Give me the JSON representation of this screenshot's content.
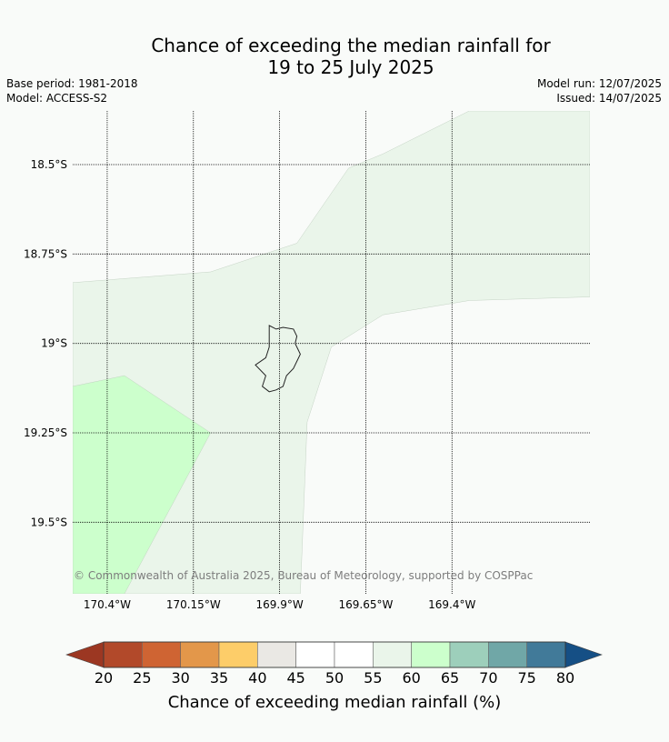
{
  "title_line1": "Chance of exceeding the median rainfall for",
  "title_line2": "19 to 25 July 2025",
  "base_period": "Base period: 1981-2018",
  "model": "Model: ACCESS-S2",
  "model_run": "Model run: 12/07/2025",
  "issued": "Issued: 14/07/2025",
  "copyright": "© Commonwealth of Australia 2025, Bureau of Meteorology, supported by COSPPac",
  "map": {
    "lon_range": [
      -170.5,
      -169.0
    ],
    "lat_range": [
      -19.7,
      -18.35
    ],
    "lat_ticks": [
      {
        "value": -18.5,
        "label": "18.5°S"
      },
      {
        "value": -18.75,
        "label": "18.75°S"
      },
      {
        "value": -19.0,
        "label": "19°S"
      },
      {
        "value": -19.25,
        "label": "19.25°S"
      },
      {
        "value": -19.5,
        "label": "19.5°S"
      }
    ],
    "lon_ticks": [
      {
        "value": -170.4,
        "label": "170.4°W"
      },
      {
        "value": -170.15,
        "label": "170.15°W"
      },
      {
        "value": -169.9,
        "label": "169.9°W"
      },
      {
        "value": -169.65,
        "label": "169.65°W"
      },
      {
        "value": -169.4,
        "label": "169.4°W"
      }
    ],
    "regions": [
      {
        "category": "55-60",
        "color": "#eaf5ea",
        "points": [
          [
            -170.5,
            -18.83
          ],
          [
            -170.1,
            -18.8
          ],
          [
            -169.85,
            -18.72
          ],
          [
            -169.7,
            -18.51
          ],
          [
            -169.6,
            -18.47
          ],
          [
            -169.35,
            -18.35
          ],
          [
            -169.0,
            -18.35
          ],
          [
            -169.0,
            -18.87
          ],
          [
            -169.35,
            -18.88
          ],
          [
            -169.6,
            -18.92
          ],
          [
            -169.75,
            -19.01
          ],
          [
            -169.82,
            -19.22
          ],
          [
            -169.84,
            -19.7
          ],
          [
            -170.5,
            -19.7
          ]
        ]
      },
      {
        "category": "60-65",
        "color": "#ccffcc",
        "points": [
          [
            -170.5,
            -19.12
          ],
          [
            -170.35,
            -19.09
          ],
          [
            -170.1,
            -19.25
          ],
          [
            -170.35,
            -19.7
          ],
          [
            -170.5,
            -19.7
          ]
        ]
      }
    ],
    "island_name_hidden": true,
    "island": [
      [
        -169.93,
        -18.95
      ],
      [
        -169.91,
        -18.96
      ],
      [
        -169.89,
        -18.955
      ],
      [
        -169.86,
        -18.96
      ],
      [
        -169.85,
        -18.98
      ],
      [
        -169.855,
        -19.0
      ],
      [
        -169.84,
        -19.03
      ],
      [
        -169.86,
        -19.07
      ],
      [
        -169.88,
        -19.09
      ],
      [
        -169.89,
        -19.12
      ],
      [
        -169.91,
        -19.13
      ],
      [
        -169.93,
        -19.135
      ],
      [
        -169.95,
        -19.12
      ],
      [
        -169.94,
        -19.09
      ],
      [
        -169.97,
        -19.06
      ],
      [
        -169.94,
        -19.04
      ],
      [
        -169.93,
        -19.01
      ]
    ]
  },
  "colorbar": {
    "label": "Chance of exceeding median rainfall (%)",
    "ticks": [
      "20",
      "25",
      "30",
      "35",
      "40",
      "45",
      "50",
      "55",
      "60",
      "65",
      "70",
      "75",
      "80"
    ],
    "under_color": "#9c3722",
    "over_color": "#154f85",
    "colors": [
      "#b2492a",
      "#cf6433",
      "#e3974a",
      "#fdcd69",
      "#eae8e4",
      "#ffffff",
      "#ffffff",
      "#eaf5ea",
      "#ccffcc",
      "#9dcfbb",
      "#70a7a7",
      "#417a99"
    ]
  }
}
